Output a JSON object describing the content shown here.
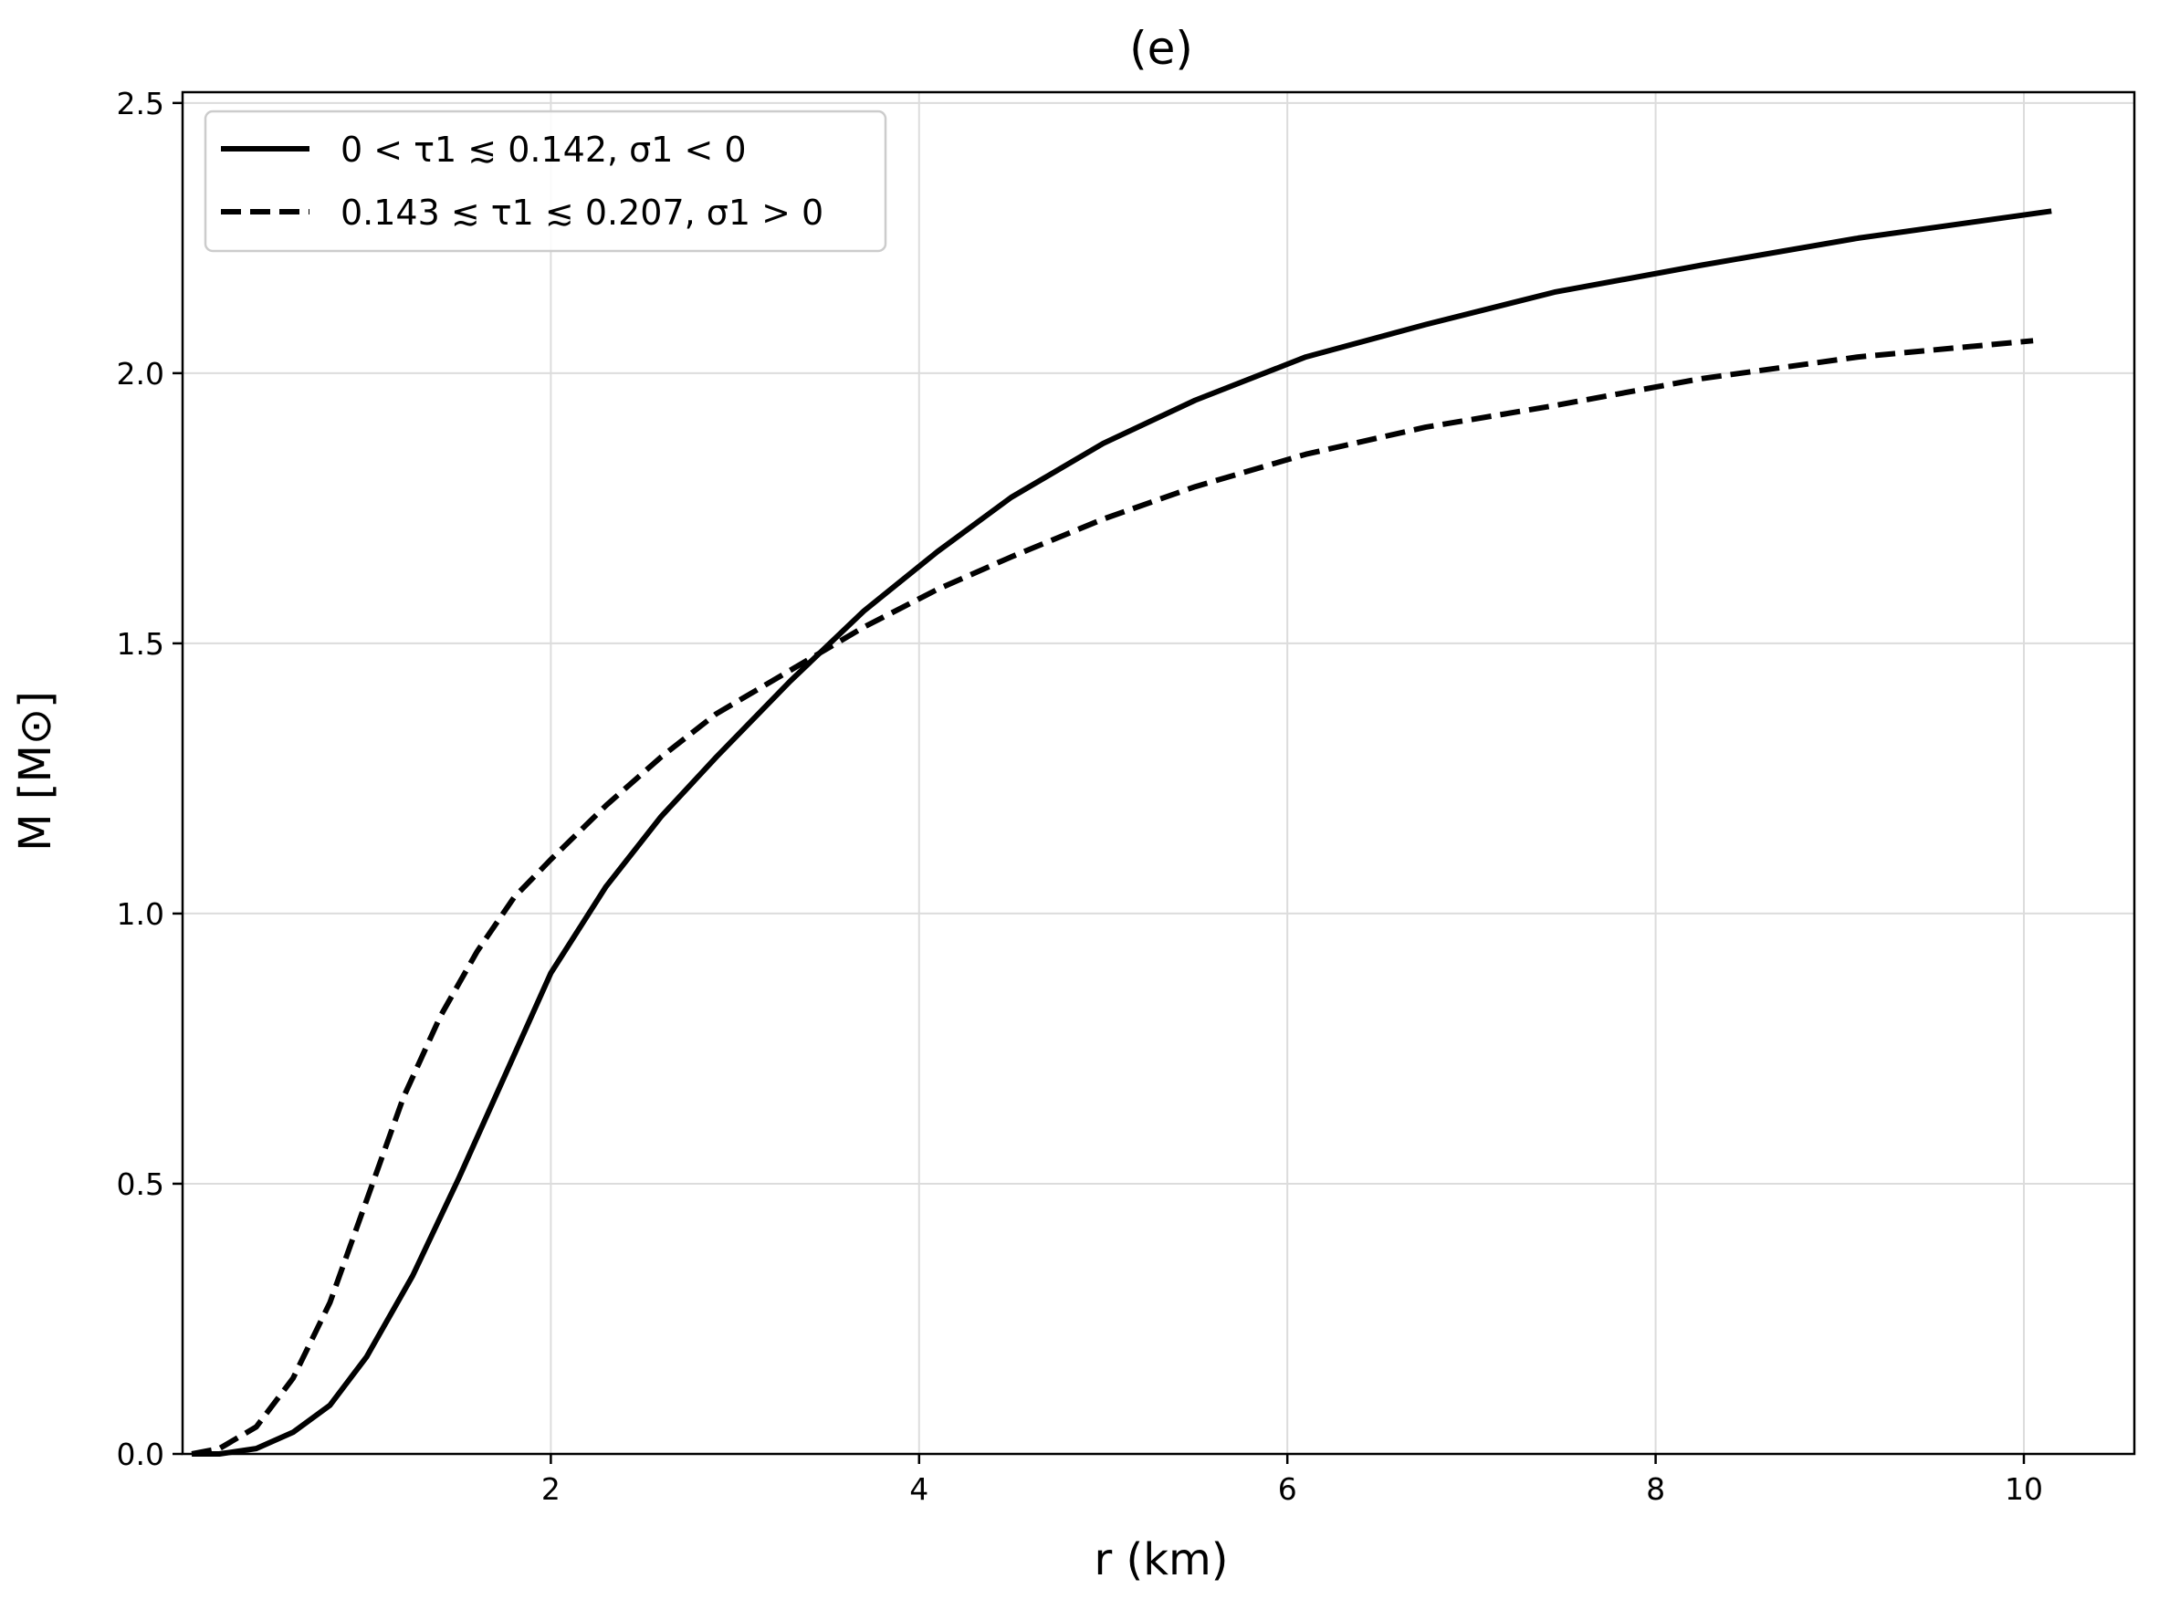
{
  "chart_data": {
    "type": "line",
    "title": "(e)",
    "xlabel": "r (km)",
    "ylabel": "M [M⊙]",
    "xlim": [
      0,
      10.6
    ],
    "ylim": [
      0,
      2.52
    ],
    "xticks": [
      2,
      4,
      6,
      8,
      10
    ],
    "yticks": [
      0.0,
      0.5,
      1.0,
      1.5,
      2.0,
      2.5
    ],
    "xtick_labels": [
      "2",
      "4",
      "6",
      "8",
      "10"
    ],
    "ytick_labels": [
      "0.0",
      "0.5",
      "1.0",
      "1.5",
      "2.0",
      "2.5"
    ],
    "grid": true,
    "legend_position": "top-left",
    "series": [
      {
        "name": "0 < τ1 ≲ 0.142, σ1 < 0",
        "style": "solid",
        "color": "#000000",
        "x": [
          0.05,
          0.2,
          0.4,
          0.6,
          0.8,
          1.0,
          1.25,
          1.5,
          1.75,
          2.0,
          2.3,
          2.6,
          2.9,
          3.3,
          3.7,
          4.1,
          4.5,
          5.0,
          5.5,
          6.1,
          6.75,
          7.45,
          8.25,
          9.1,
          10.15
        ],
        "y": [
          0.0,
          0.0,
          0.01,
          0.04,
          0.09,
          0.18,
          0.33,
          0.51,
          0.7,
          0.89,
          1.05,
          1.18,
          1.29,
          1.43,
          1.56,
          1.67,
          1.77,
          1.87,
          1.95,
          2.03,
          2.09,
          2.15,
          2.2,
          2.25,
          2.3
        ]
      },
      {
        "name": "0.143 ≲ τ1 ≲ 0.207, σ1 > 0",
        "style": "dashed",
        "color": "#000000",
        "x": [
          0.05,
          0.2,
          0.4,
          0.6,
          0.8,
          1.0,
          1.2,
          1.4,
          1.6,
          1.8,
          2.0,
          2.3,
          2.6,
          2.9,
          3.3,
          3.7,
          4.1,
          4.5,
          5.0,
          5.5,
          6.1,
          6.75,
          7.45,
          8.25,
          9.1,
          10.05
        ],
        "y": [
          0.0,
          0.01,
          0.05,
          0.14,
          0.28,
          0.47,
          0.66,
          0.81,
          0.93,
          1.03,
          1.1,
          1.2,
          1.29,
          1.37,
          1.45,
          1.53,
          1.6,
          1.66,
          1.73,
          1.79,
          1.85,
          1.9,
          1.94,
          1.99,
          2.03,
          2.06
        ]
      }
    ]
  }
}
